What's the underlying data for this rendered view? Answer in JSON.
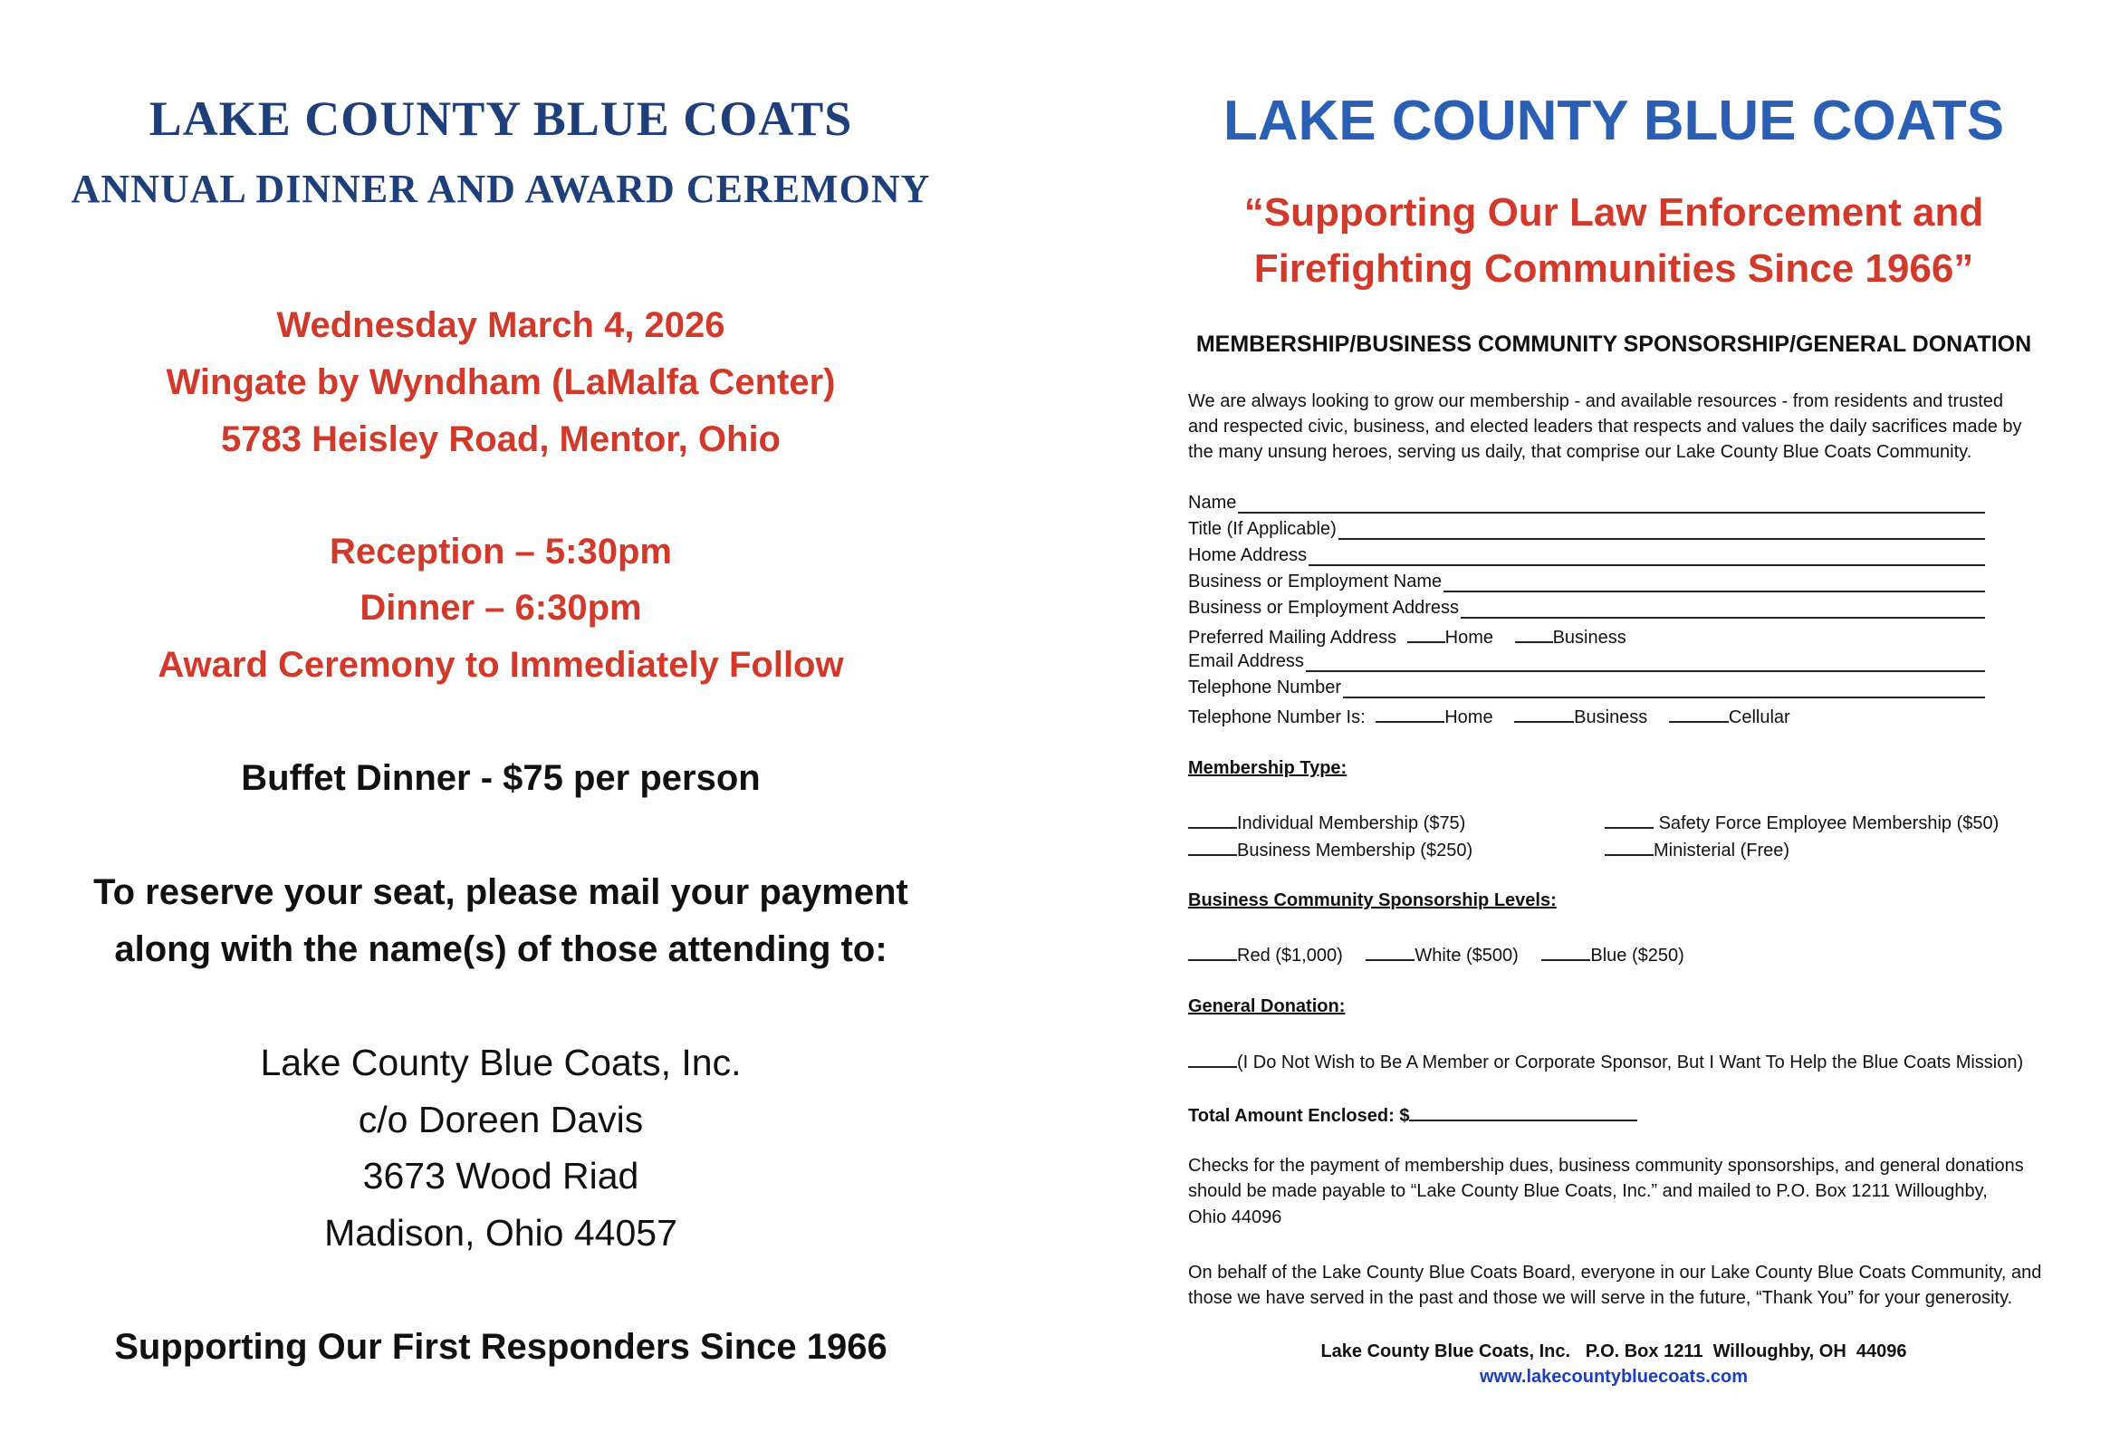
{
  "left": {
    "title": "LAKE COUNTY BLUE COATS",
    "subtitle": "ANNUAL DINNER AND AWARD CEREMONY",
    "event_date": "Wednesday March 4, 2026",
    "venue": "Wingate by Wyndham (LaMalfa Center)",
    "venue_address": "5783 Heisley Road, Mentor, Ohio",
    "reception": "Reception – 5:30pm",
    "dinner": "Dinner – 6:30pm",
    "award": "Award Ceremony to Immediately Follow",
    "price": "Buffet Dinner - $75 per person",
    "reserve_line1": "To reserve your seat, please mail your payment",
    "reserve_line2": "along with the name(s) of those attending to:",
    "mail_lines": [
      "Lake County Blue Coats, Inc.",
      "c/o Doreen Davis",
      "3673 Wood Riad",
      "Madison, Ohio 44057"
    ],
    "footer": "Supporting Our First Responders Since 1966"
  },
  "right": {
    "title": "LAKE COUNTY BLUE COATS",
    "quote_line1": "“Supporting Our Law Enforcement and",
    "quote_line2": "Firefighting Communities Since 1966”",
    "form_heading": "MEMBERSHIP/BUSINESS COMMUNITY SPONSORSHIP/GENERAL DONATION",
    "intro": [
      "We are always looking to grow our membership - and available resources - from residents and trusted",
      "and respected civic, business, and elected leaders that respects and values the daily sacrifices made by",
      "the many unsung heroes, serving us daily, that comprise our Lake County Blue Coats Community."
    ],
    "fields": [
      "Name",
      "Title (If Applicable)",
      "Home Address",
      "Business or Employment Name",
      "Business or Employment Address"
    ],
    "mailing_pref": {
      "label": "Preferred Mailing Address",
      "options": [
        "Home",
        "Business"
      ]
    },
    "fields2": [
      "Email Address",
      "Telephone Number"
    ],
    "phone_type": {
      "label": "Telephone Number Is:",
      "options": [
        "Home",
        "Business",
        "Cellular"
      ]
    },
    "membership_heading": "Membership Type:",
    "membership_options": [
      "Individual Membership ($75)",
      "Safety Force Employee Membership ($50)",
      "Business Membership ($250)",
      "Ministerial (Free)"
    ],
    "sponsorship_heading": "Business Community Sponsorship Levels:",
    "sponsorship_options": [
      "Red ($1,000)",
      "White ($500)",
      "Blue ($250)"
    ],
    "donation_heading": "General Donation:",
    "donation_option": "(I Do Not Wish to Be A Member or Corporate Sponsor, But I Want To Help the Blue Coats Mission)",
    "total_label": "Total Amount Enclosed: $",
    "checks": [
      "Checks for the payment of membership dues, business community sponsorships, and general donations",
      "should be made payable to “Lake County Blue Coats, Inc.” and mailed to P.O. Box 1211  Willoughby,",
      "Ohio 44096"
    ],
    "thanks": [
      "On behalf of the Lake County Blue Coats Board, everyone in our Lake County Blue Coats Community, and",
      "those we have served in the past and those we will serve in the future, “Thank You” for your generosity."
    ],
    "footer_address": "Lake County Blue Coats, Inc.   P.O. Box 1211  Willoughby, OH  44096",
    "website": "www.lakecountybluecoats.com"
  },
  "colors": {
    "blue_title": "#2b5fb4",
    "navy_title": "#1f3f7a",
    "red": "#d13a2a",
    "link": "#1a3fc0"
  }
}
